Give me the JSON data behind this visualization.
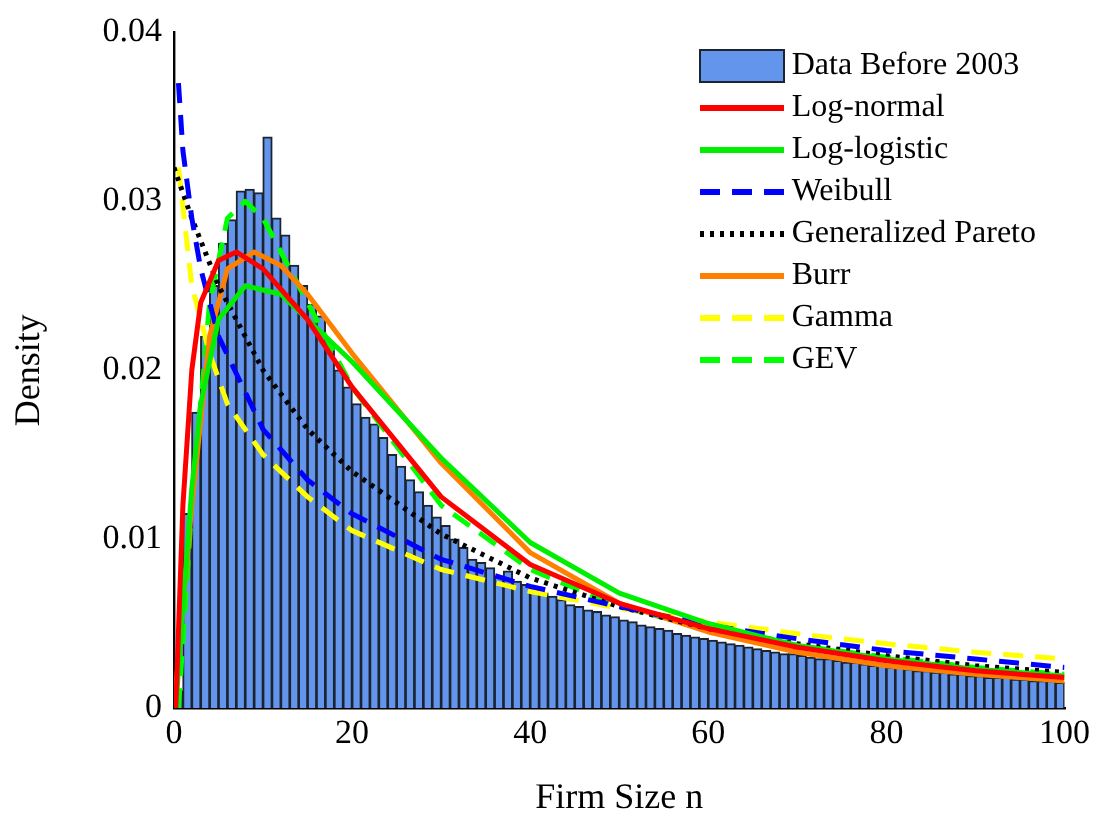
{
  "chart_data": {
    "type": "histogram",
    "xlabel": "Firm Size n",
    "ylabel": "Density",
    "xlim": [
      0,
      100
    ],
    "xticks": [
      0,
      20,
      40,
      60,
      80,
      100
    ],
    "ylim": [
      0,
      0.04
    ],
    "yticks": [
      0,
      0.01,
      0.02,
      0.03,
      0.04
    ],
    "grid": false,
    "legend": "top right",
    "marker": "none",
    "series": [
      {
        "name": "Data Before 2003",
        "color": "#6495ed",
        "bins": [
          0,
          1,
          2,
          3,
          4,
          5,
          6,
          7,
          8,
          9,
          10,
          11,
          12,
          13,
          14,
          15,
          16,
          17,
          18,
          19,
          20,
          21,
          22,
          23,
          24,
          25,
          26,
          27,
          28,
          29,
          30,
          31,
          32,
          33,
          34,
          35,
          36,
          37,
          38,
          39,
          40,
          41,
          42,
          43,
          44,
          45,
          46,
          47,
          48,
          49,
          50,
          51,
          52,
          53,
          54,
          55,
          56,
          57,
          58,
          59,
          60,
          61,
          62,
          63,
          64,
          65,
          66,
          67,
          68,
          69,
          70,
          71,
          72,
          73,
          74,
          75,
          76,
          77,
          78,
          79,
          80,
          81,
          82,
          83,
          84,
          85,
          86,
          87,
          88,
          89,
          90,
          91,
          92,
          93,
          94,
          95,
          96,
          97,
          98,
          99,
          100
        ],
        "values": [
          0.001,
          0.0115,
          0.0175,
          0.022,
          0.025,
          0.0275,
          0.0289,
          0.0306,
          0.0307,
          0.0305,
          0.0338,
          0.029,
          0.028,
          0.0262,
          0.025,
          0.0239,
          0.0232,
          0.0216,
          0.02,
          0.019,
          0.018,
          0.0172,
          0.0168,
          0.016,
          0.015,
          0.0143,
          0.0135,
          0.0128,
          0.012,
          0.0113,
          0.0108,
          0.01,
          0.0095,
          0.0088,
          0.0086,
          0.0083,
          0.0078,
          0.0081,
          0.0075,
          0.0073,
          0.0071,
          0.0068,
          0.0066,
          0.0064,
          0.0061,
          0.006,
          0.0058,
          0.0057,
          0.0055,
          0.0054,
          0.0052,
          0.0051,
          0.0049,
          0.0048,
          0.0047,
          0.0046,
          0.0044,
          0.0043,
          0.0042,
          0.0041,
          0.004,
          0.0039,
          0.0038,
          0.0037,
          0.0036,
          0.0035,
          0.0034,
          0.0033,
          0.0032,
          0.0032,
          0.0031,
          0.003,
          0.0029,
          0.0029,
          0.0028,
          0.0027,
          0.0027,
          0.0026,
          0.0025,
          0.0025,
          0.0024,
          0.0024,
          0.0023,
          0.0022,
          0.0022,
          0.0021,
          0.0021,
          0.002,
          0.002,
          0.0019,
          0.0019,
          0.0018,
          0.0018,
          0.0018,
          0.0017,
          0.0017,
          0.0016,
          0.0016,
          0.0016,
          0.0015
        ]
      },
      {
        "name": "Log-normal",
        "type": "line",
        "color": "#ff0000",
        "line_style": "solid",
        "x": [
          0.2,
          1,
          2,
          3,
          5,
          7,
          10,
          15,
          20,
          30,
          40,
          50,
          60,
          70,
          80,
          90,
          100
        ],
        "values": [
          0,
          0.012,
          0.02,
          0.024,
          0.0265,
          0.027,
          0.026,
          0.023,
          0.019,
          0.0125,
          0.0085,
          0.0062,
          0.0047,
          0.0036,
          0.0028,
          0.0022,
          0.0018
        ]
      },
      {
        "name": "Log-logistic",
        "type": "line",
        "color": "#00ee00",
        "line_style": "solid",
        "x": [
          0.2,
          1,
          2,
          3,
          5,
          8,
          12,
          15,
          20,
          30,
          40,
          50,
          60,
          70,
          80,
          90,
          100
        ],
        "values": [
          0,
          0.006,
          0.013,
          0.018,
          0.023,
          0.025,
          0.0245,
          0.023,
          0.0205,
          0.0148,
          0.0098,
          0.0068,
          0.005,
          0.0037,
          0.0029,
          0.0023,
          0.0019
        ]
      },
      {
        "name": "Weibull",
        "type": "line",
        "color": "#0000ff",
        "line_style": "dashed",
        "x": [
          0.5,
          1,
          2,
          3,
          5,
          10,
          15,
          20,
          30,
          40,
          50,
          60,
          70,
          80,
          90,
          100
        ],
        "values": [
          0.037,
          0.033,
          0.029,
          0.026,
          0.022,
          0.0165,
          0.0135,
          0.0115,
          0.0088,
          0.0072,
          0.006,
          0.0049,
          0.0041,
          0.0034,
          0.0029,
          0.0024
        ]
      },
      {
        "name": "Generalized Pareto",
        "type": "line",
        "color": "#000000",
        "line_style": "dotted",
        "x": [
          0,
          2,
          5,
          10,
          15,
          20,
          30,
          40,
          50,
          60,
          70,
          80,
          90,
          100
        ],
        "values": [
          0.032,
          0.029,
          0.025,
          0.02,
          0.0165,
          0.014,
          0.0103,
          0.0077,
          0.006,
          0.0047,
          0.0038,
          0.0031,
          0.0025,
          0.0021
        ]
      },
      {
        "name": "Burr",
        "type": "line",
        "color": "#ff8000",
        "line_style": "solid",
        "x": [
          0,
          2,
          4,
          6,
          9,
          12,
          15,
          20,
          30,
          40,
          50,
          60,
          70,
          80,
          90,
          100
        ],
        "values": [
          0,
          0.012,
          0.022,
          0.026,
          0.027,
          0.0262,
          0.0245,
          0.021,
          0.0145,
          0.0092,
          0.0062,
          0.0045,
          0.0033,
          0.0025,
          0.002,
          0.0016
        ]
      },
      {
        "name": "Gamma",
        "type": "line",
        "color": "#ffff00",
        "line_style": "dashed",
        "x": [
          0.5,
          2,
          4,
          6,
          10,
          15,
          20,
          30,
          40,
          50,
          60,
          70,
          80,
          90,
          100
        ],
        "values": [
          0.032,
          0.025,
          0.021,
          0.018,
          0.015,
          0.0125,
          0.0105,
          0.0082,
          0.0069,
          0.0059,
          0.0051,
          0.0044,
          0.0038,
          0.0033,
          0.0029
        ]
      },
      {
        "name": "GEV",
        "type": "line",
        "color": "#00ff00",
        "line_style": "dashed",
        "x": [
          0.5,
          2,
          4,
          6,
          8,
          10,
          13,
          16,
          20,
          30,
          40,
          50,
          60,
          70,
          80,
          90,
          100
        ],
        "values": [
          0,
          0.012,
          0.024,
          0.029,
          0.03,
          0.029,
          0.026,
          0.023,
          0.019,
          0.012,
          0.0082,
          0.006,
          0.0047,
          0.0037,
          0.003,
          0.0024,
          0.002
        ]
      }
    ]
  }
}
